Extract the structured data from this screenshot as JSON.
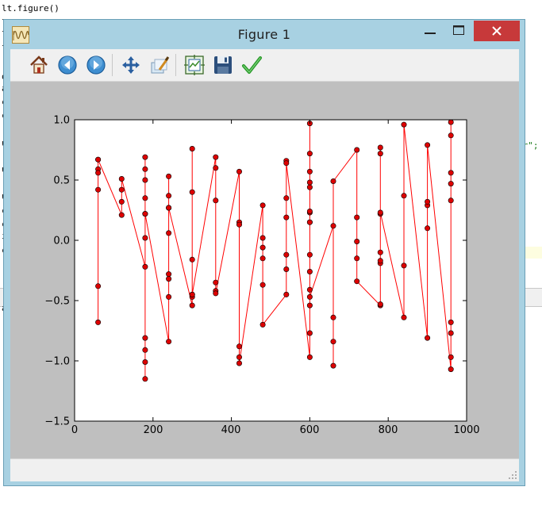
{
  "background_editor": {
    "lines": [
      {
        "text": "lt.figure()",
        "y": 15
      },
      {
        "text": "l",
        "y": 33
      },
      {
        "text": "l",
        "y": 48
      },
      {
        "text": "l",
        "y": 66
      },
      {
        "text": "o",
        "y": 101
      },
      {
        "text": "a",
        "y": 116
      },
      {
        "text": "c",
        "y": 133
      },
      {
        "text": "c",
        "y": 150
      },
      {
        "text": "u",
        "y": 185
      },
      {
        "text": "u",
        "y": 218
      },
      {
        "text": "u",
        "y": 252
      },
      {
        "text": "c",
        "y": 270
      },
      {
        "text": "c",
        "y": 287
      },
      {
        "text": "i",
        "y": 302
      },
      {
        "text": "c",
        "y": 320
      },
      {
        "text": "a",
        "y": 393
      }
    ],
    "right_snippet": "er\";"
  },
  "window": {
    "title": "Figure 1",
    "app_icon": "matplotlib-wave-icon",
    "controls": [
      "minimize-icon",
      "maximize-icon",
      "close-icon"
    ],
    "close_color": "#c7393a",
    "frame_color": "#a8d1e2"
  },
  "toolbar": {
    "buttons": [
      {
        "name": "home-icon",
        "tooltip": "Home"
      },
      {
        "name": "back-icon",
        "tooltip": "Back"
      },
      {
        "name": "forward-icon",
        "tooltip": "Forward"
      },
      {
        "name": "pan-icon",
        "tooltip": "Pan"
      },
      {
        "name": "zoom-icon",
        "tooltip": "Zoom"
      },
      {
        "name": "subplots-icon",
        "tooltip": "Configure subplots"
      },
      {
        "name": "save-icon",
        "tooltip": "Save"
      },
      {
        "name": "edit-icon",
        "tooltip": "Edit parameters"
      }
    ]
  },
  "chart_data": {
    "type": "line",
    "title": "",
    "xlabel": "",
    "ylabel": "",
    "xlim": [
      0,
      1000
    ],
    "ylim": [
      -1.5,
      1.0
    ],
    "x_ticks": [
      "0",
      "200",
      "400",
      "600",
      "800",
      "1000"
    ],
    "y_ticks": [
      "1.0",
      "0.5",
      "0.0",
      "−0.5",
      "−1.0",
      "−1.5"
    ],
    "grid": false,
    "line_color": "#ff0000",
    "marker_color": "#dd0000",
    "x": [
      60,
      60,
      60,
      60,
      60,
      60,
      60,
      120,
      120,
      120,
      120,
      180,
      180,
      180,
      180,
      180,
      180,
      180,
      180,
      180,
      180,
      180,
      180,
      240,
      240,
      240,
      240,
      240,
      240,
      240,
      240,
      240,
      300,
      300,
      300,
      300,
      300,
      300,
      300,
      360,
      360,
      360,
      360,
      360,
      360,
      420,
      420,
      420,
      420,
      420,
      420,
      480,
      480,
      480,
      480,
      480,
      480,
      540,
      540,
      540,
      540,
      540,
      540,
      540,
      600,
      600,
      600,
      600,
      600,
      600,
      600,
      600,
      600,
      600,
      600,
      600,
      600,
      600,
      600,
      600,
      660,
      660,
      660,
      660,
      660,
      720,
      720,
      720,
      720,
      720,
      780,
      780,
      780,
      780,
      780,
      780,
      780,
      780,
      780,
      840,
      840,
      840,
      840,
      900,
      900,
      900,
      900,
      900,
      960,
      960,
      960,
      960,
      960,
      960,
      960,
      960,
      960
    ],
    "y": [
      0.67,
      0.59,
      0.56,
      0.42,
      -0.38,
      -0.68,
      0.67,
      0.21,
      0.32,
      0.42,
      0.51,
      -0.22,
      -1.15,
      -1.01,
      -0.91,
      -0.81,
      0.02,
      0.22,
      0.35,
      0.5,
      0.59,
      0.69,
      0.22,
      -0.84,
      -0.47,
      -0.32,
      -0.28,
      0.06,
      0.27,
      0.37,
      0.53,
      0.27,
      -0.54,
      -0.47,
      -0.45,
      -0.16,
      0.4,
      0.76,
      -0.45,
      0.69,
      0.6,
      0.33,
      -0.35,
      -0.42,
      -0.44,
      0.57,
      0.15,
      0.13,
      -0.88,
      -0.97,
      -1.02,
      0.29,
      0.02,
      -0.06,
      -0.15,
      -0.37,
      -0.7,
      -0.45,
      -0.24,
      -0.12,
      0.19,
      0.35,
      0.66,
      0.64,
      -0.97,
      -0.77,
      -0.54,
      -0.41,
      -0.26,
      -0.12,
      0.15,
      0.23,
      0.44,
      0.48,
      0.57,
      0.72,
      0.97,
      0.24,
      0.15,
      -0.47,
      0.12,
      -0.64,
      -0.84,
      -1.04,
      0.49,
      0.75,
      0.19,
      -0.01,
      -0.15,
      -0.34,
      -0.54,
      -0.53,
      -0.19,
      -0.17,
      -0.1,
      0.22,
      0.72,
      0.77,
      0.23,
      -0.64,
      -0.21,
      0.37,
      0.96,
      -0.81,
      0.1,
      0.29,
      0.32,
      0.79,
      -1.07,
      -0.97,
      -0.77,
      -0.68,
      0.33,
      0.47,
      0.56,
      0.87,
      0.98
    ]
  }
}
